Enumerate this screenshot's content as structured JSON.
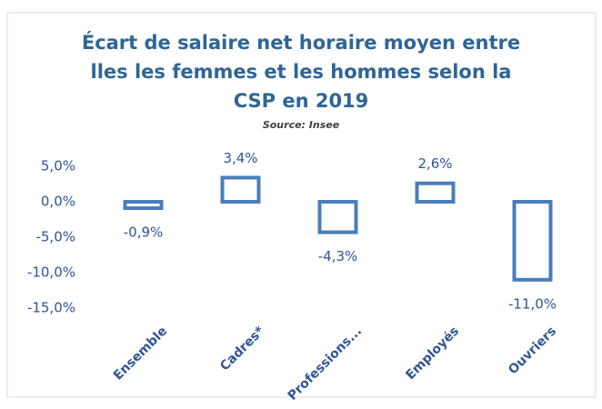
{
  "chart_data": {
    "type": "bar",
    "title": [
      "Écart de salaire net horaire moyen entre",
      "lles les femmes et les hommes selon la",
      "CSP en 2019"
    ],
    "subtitle": "Source: Insee",
    "categories": [
      "Ensemble",
      "Cadres*",
      "Professions...",
      "Employés",
      "Ouvriers"
    ],
    "values": [
      -0.9,
      3.4,
      -4.3,
      2.6,
      -11.0
    ],
    "value_labels": [
      "-0,9%",
      "3,4%",
      "-4,3%",
      "2,6%",
      "-11,0%"
    ],
    "color": "#4a7ebb",
    "ylim": [
      -15,
      5
    ],
    "yticks": [
      {
        "value": 5,
        "label": "5,0%"
      },
      {
        "value": 0,
        "label": "0,0%"
      },
      {
        "value": -5,
        "label": "-5,0%"
      },
      {
        "value": -10,
        "label": "-10,0%"
      },
      {
        "value": -15,
        "label": "-15,0%"
      }
    ],
    "grid": false
  }
}
